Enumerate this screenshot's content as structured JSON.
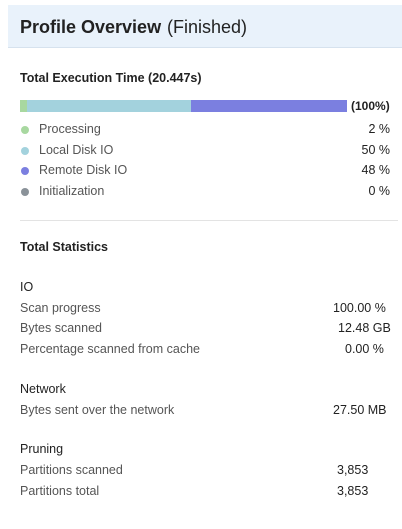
{
  "header": {
    "title": "Profile Overview",
    "status": "(Finished)"
  },
  "execution": {
    "title": "Total Execution Time (20.447s)",
    "bar_percent_label": "(100%)",
    "segments": [
      {
        "label": "Processing",
        "value": "2 %",
        "fraction": 0.02,
        "color": "#a8d8a0"
      },
      {
        "label": "Local Disk IO",
        "value": "50 %",
        "fraction": 0.5,
        "color": "#a3d2dd"
      },
      {
        "label": "Remote Disk IO",
        "value": "48 %",
        "fraction": 0.48,
        "color": "#7b7fe0"
      },
      {
        "label": "Initialization",
        "value": "0 %",
        "fraction": 0.0,
        "color": "#8a9299"
      }
    ]
  },
  "statistics": {
    "title": "Total Statistics",
    "groups": [
      {
        "title": "IO",
        "rows": [
          {
            "label": "Scan progress",
            "value": "100.00 %"
          },
          {
            "label": "Bytes scanned",
            "value": "12.48 GB"
          },
          {
            "label": "Percentage scanned from cache",
            "value": "0.00 %"
          }
        ]
      },
      {
        "title": "Network",
        "rows": [
          {
            "label": "Bytes sent over the network",
            "value": "27.50 MB"
          }
        ]
      },
      {
        "title": "Pruning",
        "rows": [
          {
            "label": "Partitions scanned",
            "value": "3,853"
          },
          {
            "label": "Partitions total",
            "value": "3,853"
          }
        ]
      }
    ]
  }
}
